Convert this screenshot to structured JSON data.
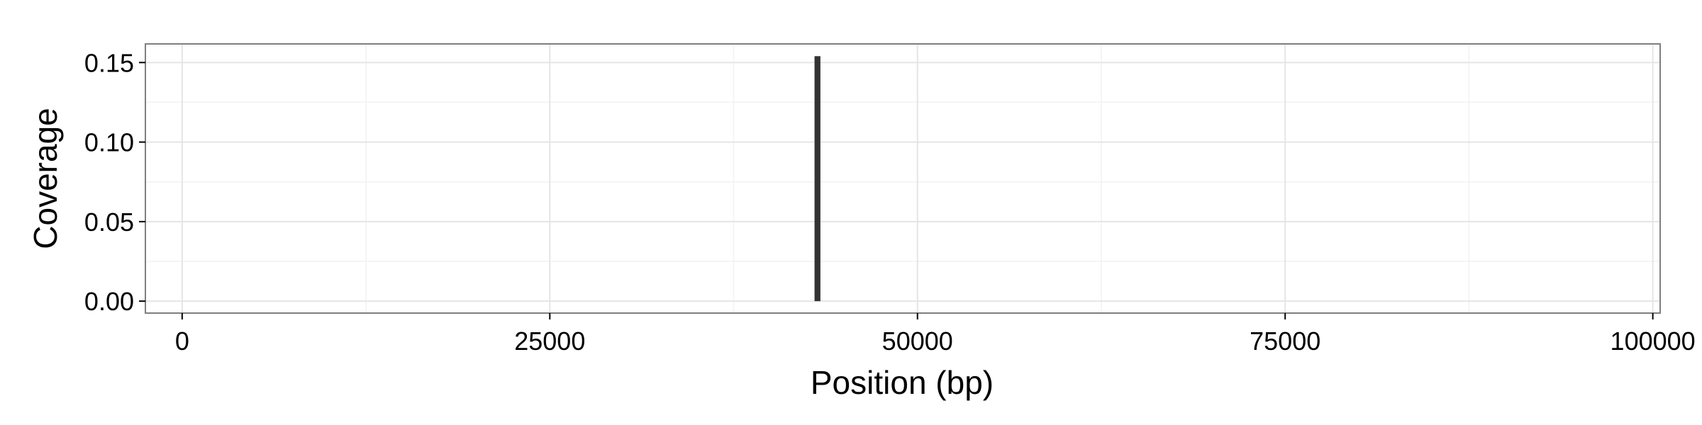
{
  "chart_data": {
    "type": "bar",
    "title": "",
    "xlabel": "Position (bp)",
    "ylabel": "Coverage",
    "xlim": [
      -2500,
      100500
    ],
    "ylim": [
      -0.0075,
      0.1617
    ],
    "x_ticks": [
      0,
      25000,
      50000,
      75000,
      100000
    ],
    "x_tick_labels": [
      "0",
      "25000",
      "50000",
      "75000",
      "100000"
    ],
    "y_ticks": [
      0.0,
      0.05,
      0.1,
      0.15
    ],
    "y_tick_labels": [
      "0.00",
      "0.05",
      "0.10",
      "0.15"
    ],
    "x_minor_ticks": [
      12500,
      37500,
      62500,
      87500
    ],
    "y_minor_ticks": [
      0.025,
      0.075,
      0.125
    ],
    "grid": true,
    "series": [
      {
        "x": [
          43200
        ],
        "values": [
          0.154
        ]
      }
    ],
    "bar_width": 400,
    "colors": {
      "bar": "#333333",
      "panel_border": "#7f7f7f",
      "grid_major": "#e5e5e5",
      "grid_minor": "#f2f2f2",
      "tick": "#000000"
    }
  }
}
